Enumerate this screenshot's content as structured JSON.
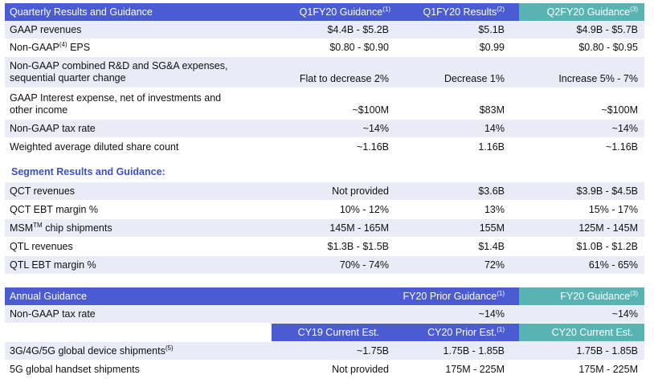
{
  "quarterly": {
    "title": "Quarterly Results and Guidance",
    "col1": "Q1FY20 Guidance",
    "col1_note": "(1)",
    "col2": "Q1FY20 Results",
    "col2_note": "(2)",
    "col3": "Q2FY20 Guidance",
    "col3_note": "(3)",
    "rows": [
      {
        "label": "GAAP revenues",
        "v1": "$4.4B - $5.2B",
        "v2": "$5.1B",
        "v3": "$4.9B - $5.7B"
      },
      {
        "label_a": "Non-GAAP",
        "label_sup": "(4)",
        "label_b": " EPS",
        "v1": "$0.80 - $0.90",
        "v2": "$0.99",
        "v3": "$0.80 - $0.95"
      },
      {
        "label_l1": "Non-GAAP combined R&D and SG&A expenses,",
        "label_l2": "sequential quarter change",
        "v1": "Flat to decrease 2%",
        "v2": "Decrease 1%",
        "v3": "Increase 5% - 7%"
      },
      {
        "label_l1": "GAAP Interest expense, net of investments and",
        "label_l2": "other income",
        "v1": "~$100M",
        "v2": "$83M",
        "v3": "~$100M"
      },
      {
        "label": "Non-GAAP tax rate",
        "v1": "~14%",
        "v2": "14%",
        "v3": "~14%"
      },
      {
        "label": "Weighted average diluted share count",
        "v1": "~1.16B",
        "v2": "1.16B",
        "v3": "~1.16B"
      }
    ]
  },
  "segment": {
    "title": "Segment Results and Guidance:",
    "rows": [
      {
        "label": "QCT revenues",
        "v1": "Not provided",
        "v2": "$3.6B",
        "v3": "$3.9B - $4.5B"
      },
      {
        "label": "QCT EBT margin %",
        "v1": "10% - 12%",
        "v2": "13%",
        "v3": "15% - 17%"
      },
      {
        "label_a": "MSM",
        "label_sup": "TM",
        "label_b": " chip shipments",
        "v1": "145M - 165M",
        "v2": "155M",
        "v3": "125M - 145M"
      },
      {
        "label": "QTL revenues",
        "v1": "$1.3B - $1.5B",
        "v2": "$1.4B",
        "v3": "$1.0B - $1.2B"
      },
      {
        "label": "QTL EBT margin %",
        "v1": "70% - 74%",
        "v2": "72%",
        "v3": "61% - 65%"
      }
    ]
  },
  "annual": {
    "title": "Annual Guidance",
    "col2": "FY20 Prior Guidance",
    "col2_note": "(1)",
    "col3": "FY20 Guidance",
    "col3_note": "(3)",
    "tax_row": {
      "label": "Non-GAAP tax rate",
      "v2": "~14%",
      "v3": "~14%"
    },
    "sub_col1": "CY19 Current Est.",
    "sub_col2": "CY20 Prior Est.",
    "sub_col2_note": "(1)",
    "sub_col3": "CY20 Current Est.",
    "rows": [
      {
        "label_a": "3G/4G/5G global device shipments",
        "label_sup": "(5)",
        "v1": "~1.75B",
        "v2": "1.75B - 1.85B",
        "v3": "1.75B - 1.85B"
      },
      {
        "label": "5G global handset shipments",
        "v1": "Not provided",
        "v2": "175M - 225M",
        "v3": "175M - 225M"
      }
    ]
  },
  "colors": {
    "header_blue": "#4b5bd4",
    "header_teal": "#58b3b3",
    "row_shade": "#e9ebf6",
    "segment_title": "#3d4fc4"
  }
}
